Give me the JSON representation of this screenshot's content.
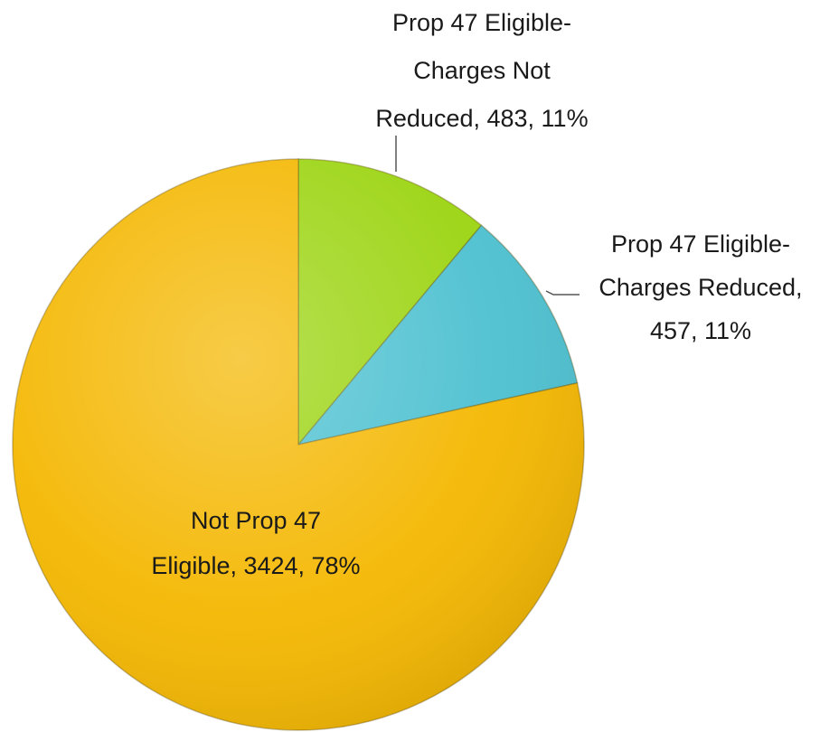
{
  "chart_data": {
    "type": "pie",
    "values": [
      483,
      457,
      3424
    ],
    "value_labels": [
      [
        "Prop 47 Eligible-",
        "Charges Not",
        "Reduced, 483, 11%"
      ],
      [
        "Prop 47 Eligible-",
        "Charges Reduced,",
        "457, 11%"
      ],
      [
        "Not Prop 47",
        "Eligible, 3424, 78%"
      ]
    ],
    "colors": [
      "#9bd410",
      "#4cc0d0",
      "#f4b700"
    ]
  }
}
